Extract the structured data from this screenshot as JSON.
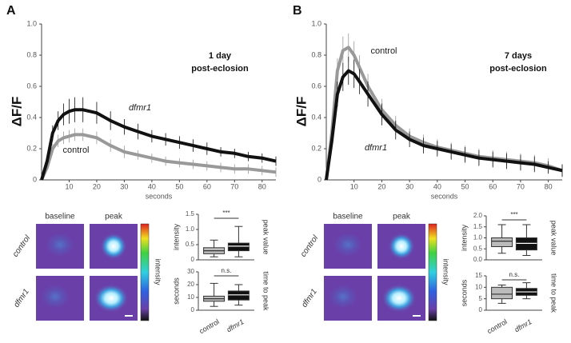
{
  "panels": [
    {
      "letter": "A",
      "columns": [
        "baseline",
        "peak"
      ],
      "rows": [
        "control",
        "dfmr1"
      ],
      "colorbar_label": "intensity"
    },
    {
      "letter": "B",
      "columns": [
        "baseline",
        "peak"
      ],
      "rows": [
        "control",
        "dfmr1"
      ],
      "colorbar_label": "intensity"
    }
  ],
  "chart_data": [
    {
      "type": "line",
      "ylabel": "ΔF/F",
      "xlabel": "seconds",
      "annotations": [
        "1 day",
        "post-eclosion"
      ],
      "x": [
        0,
        2,
        4,
        6,
        8,
        10,
        12,
        15,
        20,
        25,
        30,
        35,
        40,
        45,
        50,
        55,
        60,
        65,
        70,
        75,
        80,
        85
      ],
      "xlim": [
        0,
        85
      ],
      "xticks": [
        10,
        20,
        30,
        40,
        50,
        60,
        70,
        80
      ],
      "ylim": [
        0,
        1
      ],
      "yticks": [
        0,
        0.2,
        0.4,
        0.6,
        0.8,
        {
          "value": 1,
          "label": "1.0"
        }
      ],
      "series": [
        {
          "name": "control",
          "color": "#999999",
          "values": [
            0,
            0.08,
            0.2,
            0.25,
            0.27,
            0.28,
            0.29,
            0.29,
            0.27,
            0.22,
            0.18,
            0.16,
            0.14,
            0.12,
            0.11,
            0.1,
            0.09,
            0.08,
            0.07,
            0.07,
            0.06,
            0.05
          ],
          "errors": [
            0,
            0.02,
            0.03,
            0.04,
            0.04,
            0.04,
            0.04,
            0.04,
            0.04,
            0.04,
            0.04,
            0.03,
            0.03,
            0.03,
            0.03,
            0.03,
            0.03,
            0.03,
            0.03,
            0.03,
            0.03,
            0.03
          ]
        },
        {
          "name": "dfmr1",
          "color": "#111111",
          "values": [
            0,
            0.12,
            0.3,
            0.38,
            0.42,
            0.44,
            0.45,
            0.45,
            0.43,
            0.38,
            0.34,
            0.31,
            0.28,
            0.26,
            0.24,
            0.22,
            0.2,
            0.18,
            0.17,
            0.15,
            0.14,
            0.12
          ],
          "errors": [
            0,
            0.03,
            0.05,
            0.06,
            0.07,
            0.08,
            0.08,
            0.08,
            0.07,
            0.06,
            0.05,
            0.05,
            0.04,
            0.04,
            0.04,
            0.04,
            0.04,
            0.03,
            0.03,
            0.03,
            0.03,
            0.03
          ]
        }
      ]
    },
    {
      "type": "box",
      "ylabel": "intensity",
      "right_label": "peak value",
      "significance": "***",
      "ylim": [
        0,
        1.5
      ],
      "yticks": [
        0,
        0.5,
        {
          "value": 1,
          "label": "1.0"
        },
        1.5
      ],
      "boxes": [
        {
          "color": "#bbbbbb",
          "min": 0.1,
          "q1": 0.2,
          "median": 0.3,
          "q3": 0.4,
          "max": 0.65
        },
        {
          "color": "#111111",
          "min": 0.1,
          "q1": 0.3,
          "median": 0.45,
          "q3": 0.55,
          "max": 1.1
        }
      ]
    },
    {
      "type": "box",
      "ylabel": "seconds",
      "right_label": "time to peak",
      "significance": "n.s.",
      "categories": [
        "control",
        "dfmr1"
      ],
      "ylim": [
        0,
        30
      ],
      "yticks": [
        0,
        10,
        20,
        30
      ],
      "boxes": [
        {
          "color": "#bbbbbb",
          "min": 3,
          "q1": 7,
          "median": 9,
          "q3": 11,
          "max": 21
        },
        {
          "color": "#111111",
          "min": 4,
          "q1": 8,
          "median": 12,
          "q3": 15,
          "max": 20
        }
      ]
    },
    {
      "type": "line",
      "ylabel": "ΔF/F",
      "xlabel": "seconds",
      "annotations": [
        "7 days",
        "post-eclosion"
      ],
      "x": [
        0,
        2,
        4,
        6,
        8,
        10,
        12,
        15,
        20,
        25,
        30,
        35,
        40,
        45,
        50,
        55,
        60,
        65,
        70,
        75,
        80,
        85
      ],
      "xlim": [
        0,
        85
      ],
      "xticks": [
        10,
        20,
        30,
        40,
        50,
        60,
        70,
        80
      ],
      "ylim": [
        0,
        1
      ],
      "yticks": [
        0,
        0.2,
        0.4,
        0.6,
        0.8,
        {
          "value": 1,
          "label": "1.0"
        }
      ],
      "series": [
        {
          "name": "control",
          "color": "#999999",
          "values": [
            0,
            0.3,
            0.7,
            0.83,
            0.85,
            0.8,
            0.72,
            0.6,
            0.45,
            0.35,
            0.28,
            0.24,
            0.21,
            0.19,
            0.17,
            0.15,
            0.14,
            0.13,
            0.12,
            0.11,
            0.09,
            0.06
          ],
          "errors": [
            0,
            0.05,
            0.08,
            0.09,
            0.09,
            0.09,
            0.08,
            0.08,
            0.07,
            0.06,
            0.05,
            0.05,
            0.05,
            0.05,
            0.05,
            0.05,
            0.05,
            0.05,
            0.05,
            0.05,
            0.05,
            0.04
          ]
        },
        {
          "name": "dfmr1",
          "color": "#111111",
          "values": [
            0,
            0.25,
            0.55,
            0.66,
            0.7,
            0.68,
            0.63,
            0.55,
            0.42,
            0.32,
            0.26,
            0.22,
            0.2,
            0.18,
            0.16,
            0.14,
            0.13,
            0.12,
            0.11,
            0.1,
            0.08,
            0.06
          ],
          "errors": [
            0,
            0.05,
            0.08,
            0.09,
            0.09,
            0.09,
            0.08,
            0.08,
            0.07,
            0.06,
            0.05,
            0.05,
            0.05,
            0.05,
            0.05,
            0.05,
            0.05,
            0.05,
            0.05,
            0.05,
            0.04,
            0.04
          ]
        }
      ]
    },
    {
      "type": "box",
      "ylabel": "intensity",
      "right_label": "peak value",
      "significance": "***",
      "ylim": [
        0,
        2
      ],
      "yticks": [
        {
          "value": 0,
          "label": "0.0"
        },
        0.5,
        {
          "value": 1,
          "label": "1.0"
        },
        1.5,
        {
          "value": 2,
          "label": "2.0"
        }
      ],
      "boxes": [
        {
          "color": "#bbbbbb",
          "min": 0.3,
          "q1": 0.6,
          "median": 0.85,
          "q3": 1,
          "max": 1.6
        },
        {
          "color": "#111111",
          "min": 0.2,
          "q1": 0.45,
          "median": 0.75,
          "q3": 1,
          "max": 1.6
        }
      ]
    },
    {
      "type": "box",
      "ylabel": "seconds",
      "right_label": "time to peak",
      "significance": "n.s.",
      "categories": [
        "control",
        "dfmr1"
      ],
      "ylim": [
        0,
        15
      ],
      "yticks": [
        0,
        5,
        10,
        15
      ],
      "boxes": [
        {
          "color": "#bbbbbb",
          "min": 3,
          "q1": 5,
          "median": 7,
          "q3": 10,
          "max": 11
        },
        {
          "color": "#111111",
          "min": 5,
          "q1": 6.5,
          "median": 8,
          "q3": 9.5,
          "max": 12
        }
      ]
    }
  ]
}
